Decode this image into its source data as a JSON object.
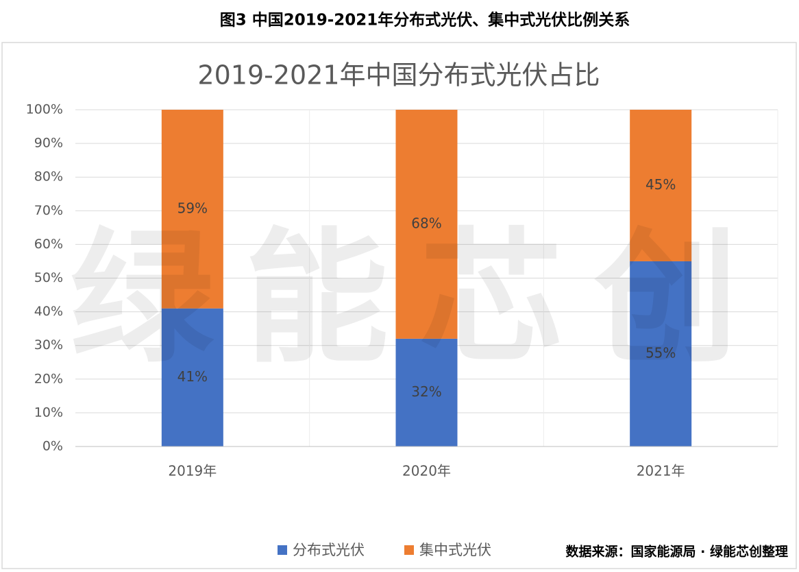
{
  "chart_data": {
    "type": "stacked_bar",
    "figure_title": "图3 中国2019-2021年分布式光伏、集中式光伏比例关系",
    "title": "2019-2021年中国分布式光伏占比",
    "categories": [
      "2019年",
      "2020年",
      "2021年"
    ],
    "series": [
      {
        "name": "分布式光伏",
        "color": "#4472c4",
        "values": [
          41,
          32,
          55
        ],
        "value_labels": [
          "41%",
          "32%",
          "55%"
        ]
      },
      {
        "name": "集中式光伏",
        "color": "#ed7d31",
        "values": [
          59,
          68,
          45
        ],
        "value_labels": [
          "59%",
          "68%",
          "45%"
        ]
      }
    ],
    "ylim": [
      0,
      100
    ],
    "yticks": [
      {
        "value": 0,
        "label": "0%"
      },
      {
        "value": 10,
        "label": "10%"
      },
      {
        "value": 20,
        "label": "20%"
      },
      {
        "value": 30,
        "label": "30%"
      },
      {
        "value": 40,
        "label": "40%"
      },
      {
        "value": 50,
        "label": "50%"
      },
      {
        "value": 60,
        "label": "60%"
      },
      {
        "value": 70,
        "label": "70%"
      },
      {
        "value": 80,
        "label": "80%"
      },
      {
        "value": 90,
        "label": "90%"
      },
      {
        "value": 100,
        "label": "100%"
      }
    ],
    "grid": true,
    "legend": "bottom",
    "watermark": "绿能芯创",
    "source": "数据来源：国家能源局 · 绿能芯创整理"
  }
}
